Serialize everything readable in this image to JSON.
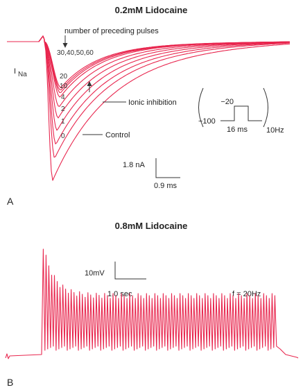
{
  "chart_data": [
    {
      "type": "line",
      "panel_label": "A",
      "title": "0.2mM Lidocaine",
      "ylabel": "I",
      "ylabel_sub": "Na",
      "header_annotation": "number of preceding pulses",
      "pulse_group_label": "30,40,50,60",
      "trace_labels": [
        "20",
        "10",
        "4",
        "2",
        "1",
        "0"
      ],
      "series": [
        {
          "name": "Control",
          "peak_relative": 1.0
        },
        {
          "name": "1",
          "peak_relative": 0.84
        },
        {
          "name": "2",
          "peak_relative": 0.74
        },
        {
          "name": "4",
          "peak_relative": 0.64
        },
        {
          "name": "10",
          "peak_relative": 0.55
        },
        {
          "name": "20",
          "peak_relative": 0.47
        },
        {
          "name": "30",
          "peak_relative": 0.4
        },
        {
          "name": "40",
          "peak_relative": 0.37
        },
        {
          "name": "50",
          "peak_relative": 0.35
        },
        {
          "name": "60",
          "peak_relative": 0.33
        }
      ],
      "annotations": {
        "ionic_inhibition": "Ionic inhibition",
        "control": "Control"
      },
      "protocol": {
        "hold": "−100",
        "step": "−20",
        "duration": "16 ms",
        "frequency": "10Hz"
      },
      "scale_bar": {
        "current": "1.8 nA",
        "time": "0.9 ms"
      }
    },
    {
      "type": "line",
      "panel_label": "B",
      "title": "0.8mM Lidocaine",
      "frequency_label": "f = 20Hz",
      "n_action_potentials": 84,
      "first_spike_relative": 1.0,
      "steady_spike_relative": 0.55,
      "scale_bar": {
        "voltage": "10mV",
        "time": "1.0 sec"
      }
    }
  ],
  "colors": {
    "trace": "#e8264e",
    "text": "#222222"
  }
}
